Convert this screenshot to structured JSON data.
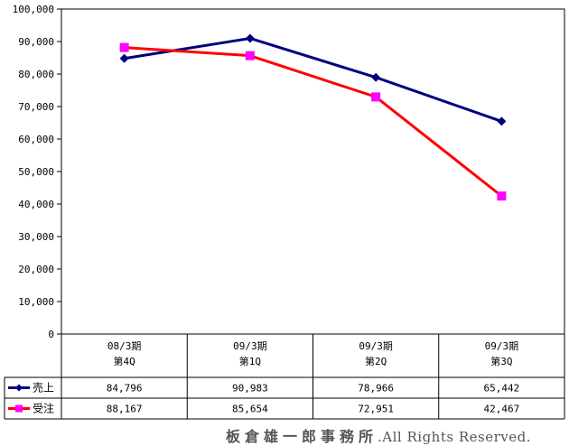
{
  "chart_data": {
    "type": "line",
    "categories": [
      [
        "08/3期",
        "第4Q"
      ],
      [
        "09/3期",
        "第1Q"
      ],
      [
        "09/3期",
        "第2Q"
      ],
      [
        "09/3期",
        "第3Q"
      ]
    ],
    "series": [
      {
        "name": "売上",
        "values": [
          84796,
          90983,
          78966,
          65442
        ],
        "value_labels": [
          "84,796",
          "90,983",
          "78,966",
          "65,442"
        ],
        "color": "#000080",
        "marker": "diamond"
      },
      {
        "name": "受注",
        "values": [
          88167,
          85654,
          72951,
          42467
        ],
        "value_labels": [
          "88,167",
          "85,654",
          "72,951",
          "42,467"
        ],
        "color": "#ff0000",
        "marker": "square",
        "marker_color": "#ff00ff"
      }
    ],
    "ylim": [
      0,
      100000
    ],
    "yticks": [
      0,
      10000,
      20000,
      30000,
      40000,
      50000,
      60000,
      70000,
      80000,
      90000,
      100000
    ],
    "ytick_labels": [
      "0",
      "10,000",
      "20,000",
      "30,000",
      "40,000",
      "50,000",
      "60,000",
      "70,000",
      "80,000",
      "90,000",
      "100,000"
    ],
    "grid": false,
    "data_table": true
  },
  "copyright": {
    "owner": "板倉雄一郎事務所",
    "rights": ".All Rights Reserved."
  }
}
